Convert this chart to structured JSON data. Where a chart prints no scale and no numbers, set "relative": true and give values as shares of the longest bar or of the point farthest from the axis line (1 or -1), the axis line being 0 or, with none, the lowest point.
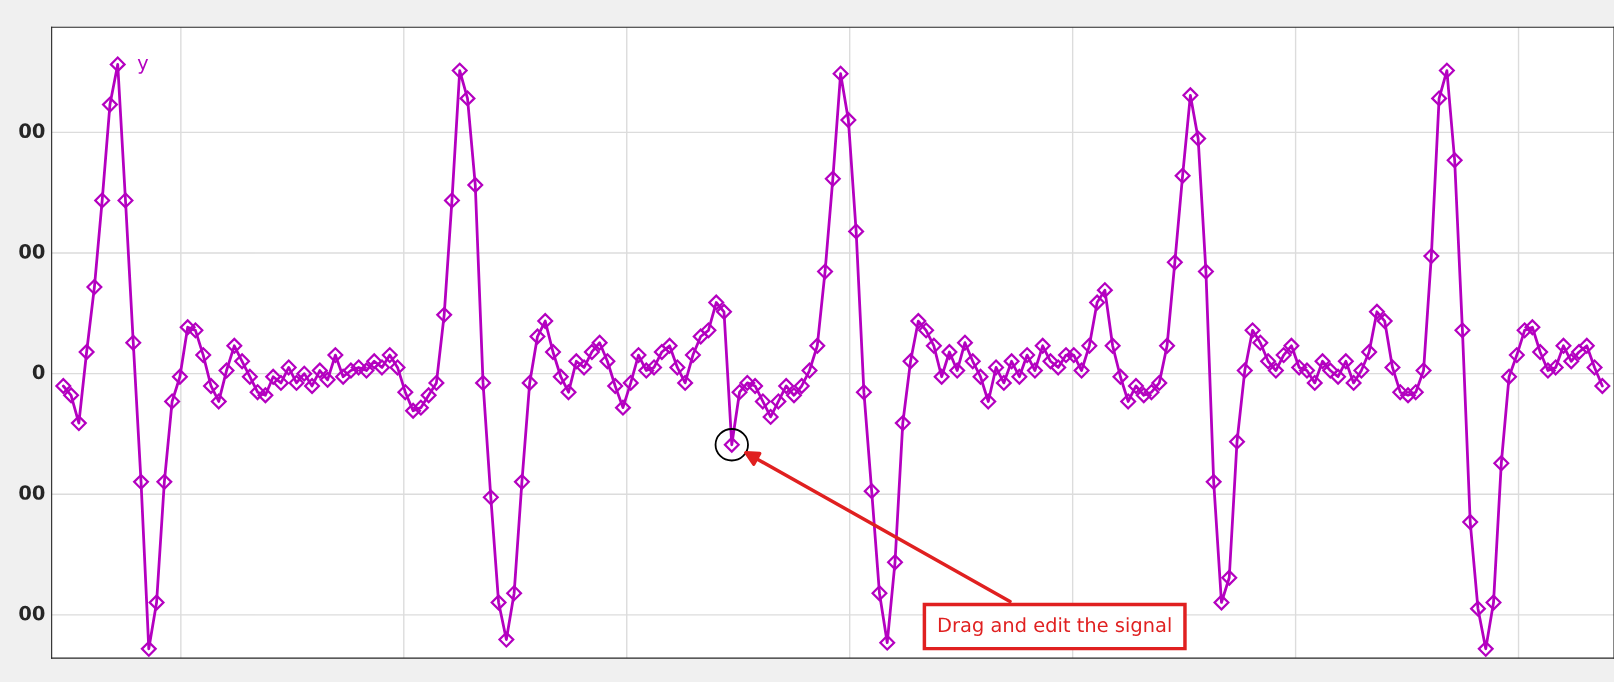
{
  "chart_data": {
    "type": "line",
    "relative": true,
    "grid": true,
    "marker": "diamond",
    "line_style": "solid",
    "annotations": [
      "00",
      "00",
      "0",
      "00",
      "00",
      "Drag and edit the signal"
    ],
    "categories": [
      null,
      null,
      null,
      null,
      null,
      null,
      null,
      null,
      null,
      null,
      null,
      null,
      null,
      null,
      null,
      null,
      null,
      null,
      null,
      null,
      null,
      null,
      null,
      null,
      null,
      null,
      null,
      null,
      null,
      null,
      null,
      null,
      null,
      null,
      null,
      null,
      null,
      null,
      null,
      null,
      null,
      null,
      null,
      null,
      null,
      null,
      null,
      null,
      null,
      null,
      null,
      null,
      null,
      null,
      null,
      null,
      null,
      null,
      null,
      null,
      null,
      null,
      null,
      null,
      null,
      null,
      null,
      null,
      null,
      null,
      null,
      null,
      null,
      null,
      null,
      null,
      null,
      null,
      null,
      null,
      null,
      null,
      null,
      null,
      null,
      null,
      null,
      null,
      null,
      null,
      null,
      null,
      null,
      null,
      null,
      null,
      null,
      null,
      null,
      null,
      null,
      null,
      null,
      null,
      null,
      null,
      null,
      null,
      null,
      null,
      null,
      null,
      null,
      null,
      null,
      null,
      null,
      null,
      null,
      null,
      null,
      null,
      null,
      null,
      null,
      null,
      null,
      null,
      null,
      null,
      null,
      null,
      null,
      null,
      null,
      null,
      null,
      null,
      null,
      null,
      null,
      null,
      null,
      null,
      null,
      null,
      null,
      null,
      null,
      null,
      null,
      null,
      null,
      null,
      null,
      null,
      null,
      null,
      null,
      null,
      null,
      null,
      null,
      null,
      null,
      null,
      null,
      null,
      null,
      null,
      null,
      null,
      null,
      null,
      null,
      null,
      null,
      null,
      null,
      null,
      null,
      null,
      null,
      null,
      null,
      null,
      null,
      null,
      null,
      null,
      null,
      null,
      null,
      null,
      null,
      null,
      null,
      null,
      null
    ],
    "series": [
      {
        "name": "y",
        "color": "#b400c0",
        "values": [
          -0.04,
          -0.07,
          -0.16,
          0.07,
          0.28,
          0.56,
          0.87,
          1,
          0.56,
          0.1,
          -0.35,
          -0.89,
          -0.74,
          -0.35,
          -0.09,
          -0.01,
          0.15,
          0.14,
          0.06,
          -0.04,
          -0.09,
          0.01,
          0.09,
          0.04,
          -0.01,
          -0.06,
          -0.07,
          -0.01,
          -0.03,
          0.02,
          -0.03,
          0,
          -0.04,
          0.01,
          -0.02,
          0.06,
          -0.01,
          0.01,
          0.02,
          0.01,
          0.04,
          0.02,
          0.06,
          0.02,
          -0.06,
          -0.12,
          -0.11,
          -0.07,
          -0.03,
          0.19,
          0.56,
          0.98,
          0.89,
          0.61,
          -0.03,
          -0.4,
          -0.74,
          -0.86,
          -0.71,
          -0.35,
          -0.03,
          0.12,
          0.17,
          0.07,
          -0.01,
          -0.06,
          0.04,
          0.02,
          0.07,
          0.1,
          0.04,
          -0.04,
          -0.11,
          -0.03,
          0.06,
          0.01,
          0.02,
          0.07,
          0.09,
          0.02,
          -0.03,
          0.06,
          0.12,
          0.14,
          0.23,
          0.2,
          -0.23,
          -0.06,
          -0.03,
          -0.04,
          -0.09,
          -0.14,
          -0.09,
          -0.04,
          -0.07,
          -0.04,
          0.01,
          0.09,
          0.33,
          0.63,
          0.97,
          0.82,
          0.46,
          -0.06,
          -0.38,
          -0.71,
          -0.87,
          -0.61,
          -0.16,
          0.04,
          0.17,
          0.14,
          0.09,
          -0.01,
          0.07,
          0.01,
          0.1,
          0.04,
          -0.01,
          -0.09,
          0.02,
          -0.03,
          0.04,
          -0.01,
          0.06,
          0.01,
          0.09,
          0.04,
          0.02,
          0.06,
          0.06,
          0.01,
          0.09,
          0.23,
          0.27,
          0.09,
          -0.01,
          -0.09,
          -0.04,
          -0.07,
          -0.06,
          -0.03,
          0.09,
          0.36,
          0.64,
          0.9,
          0.76,
          0.33,
          -0.35,
          -0.74,
          -0.66,
          -0.22,
          0.01,
          0.14,
          0.1,
          0.04,
          0.01,
          0.06,
          0.09,
          0.02,
          0.01,
          -0.03,
          0.04,
          0.01,
          -0.01,
          0.04,
          -0.03,
          0.01,
          0.07,
          0.2,
          0.17,
          0.02,
          -0.06,
          -0.07,
          -0.06,
          0.01,
          0.38,
          0.89,
          0.98,
          0.69,
          0.14,
          -0.48,
          -0.76,
          -0.89,
          -0.74,
          -0.29,
          -0.01,
          0.06,
          0.14,
          0.15,
          0.07,
          0.01,
          0.02,
          0.09,
          0.04,
          0.07,
          0.09,
          0.02,
          -0.04
        ]
      }
    ]
  }
}
